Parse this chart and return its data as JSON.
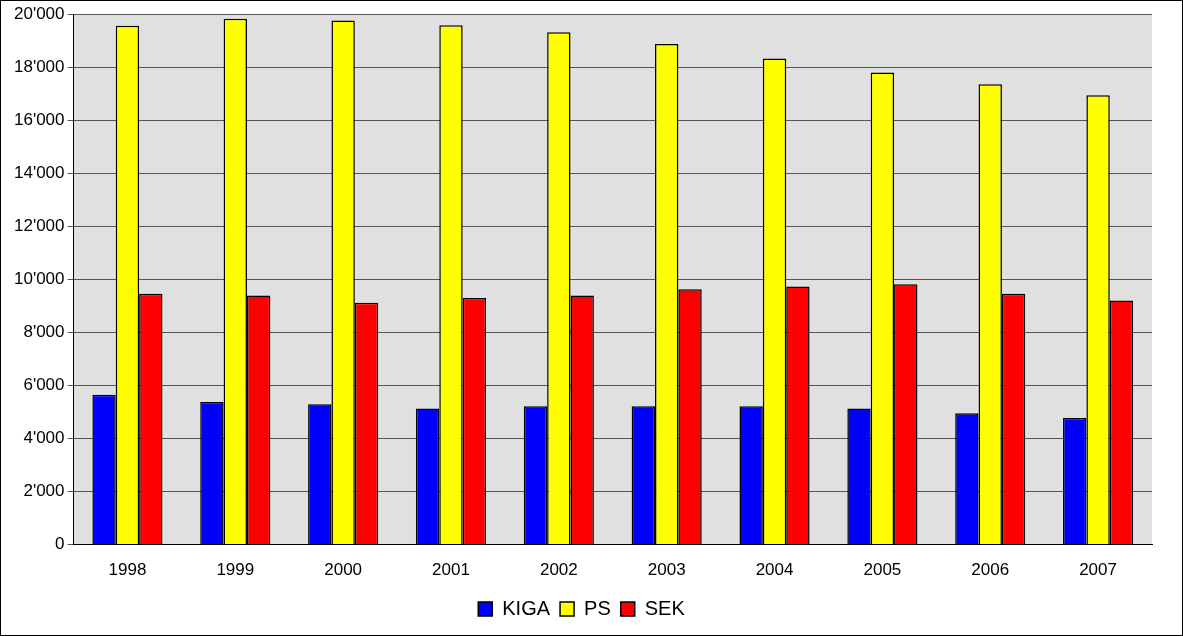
{
  "chart_data": {
    "type": "bar",
    "categories": [
      "1998",
      "1999",
      "2000",
      "2001",
      "2002",
      "2003",
      "2004",
      "2005",
      "2006",
      "2007"
    ],
    "series": [
      {
        "name": "KIGA",
        "color": "#0000ff",
        "values": [
          5650,
          5380,
          5290,
          5130,
          5220,
          5220,
          5220,
          5130,
          4950,
          4770
        ]
      },
      {
        "name": "PS",
        "color": "#ffff00",
        "values": [
          19560,
          19830,
          19760,
          19580,
          19320,
          18880,
          18330,
          17800,
          17360,
          16940
        ]
      },
      {
        "name": "SEK",
        "color": "#ff0000",
        "values": [
          9460,
          9390,
          9120,
          9300,
          9390,
          9630,
          9730,
          9820,
          9460,
          9200
        ]
      }
    ],
    "ylim": [
      0,
      20000
    ],
    "yticks": [
      0,
      {
        "value": 2000,
        "label": "2'000"
      },
      {
        "value": 4000,
        "label": "4'000"
      },
      {
        "value": 6000,
        "label": "6'000"
      },
      {
        "value": 8000,
        "label": "8'000"
      },
      {
        "value": 10000,
        "label": "10'000"
      },
      {
        "value": 12000,
        "label": "12'000"
      },
      {
        "value": 14000,
        "label": "14'000"
      },
      {
        "value": 16000,
        "label": "16'000"
      },
      {
        "value": 18000,
        "label": "18'000"
      },
      {
        "value": 20000,
        "label": "20'000"
      }
    ],
    "grid": "y",
    "legend": "bottom"
  }
}
